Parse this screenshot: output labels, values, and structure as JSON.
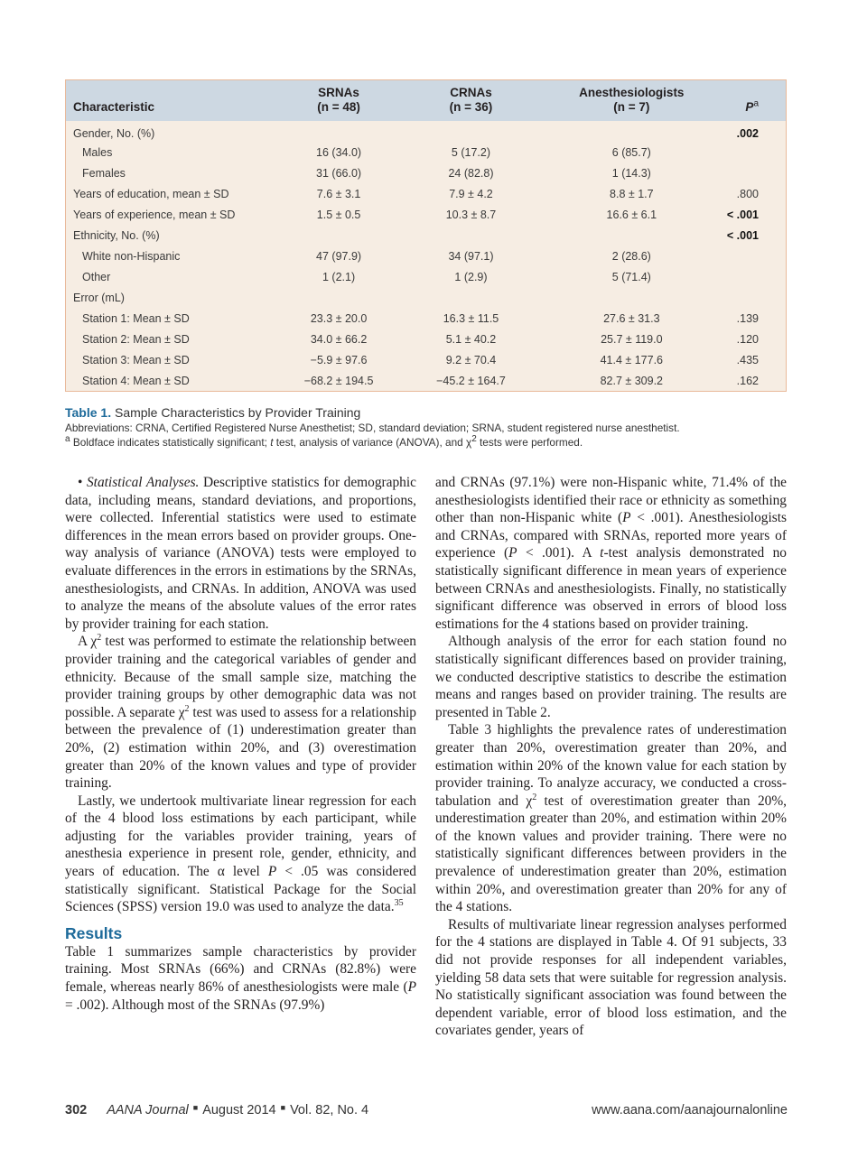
{
  "table": {
    "headers": [
      [
        "Characteristic",
        ""
      ],
      [
        "SRNAs",
        "(n = 48)"
      ],
      [
        "CRNAs",
        "(n = 36)"
      ],
      [
        "Anesthesiologists",
        "(n = 7)"
      ],
      [
        "P",
        "a"
      ]
    ],
    "rows": [
      {
        "label": "Gender, No. (%)",
        "indent": false,
        "values": [
          "",
          "",
          ""
        ],
        "p": ".002",
        "bold": true
      },
      {
        "label": "Males",
        "indent": true,
        "values": [
          "16 (34.0)",
          "5 (17.2)",
          "6 (85.7)"
        ],
        "p": "",
        "bold": false
      },
      {
        "label": "Females",
        "indent": true,
        "values": [
          "31 (66.0)",
          "24 (82.8)",
          "1 (14.3)"
        ],
        "p": "",
        "bold": false
      },
      {
        "label": "Years of education, mean ± SD",
        "indent": false,
        "values": [
          "7.6 ± 3.1",
          "7.9 ± 4.2",
          "8.8 ± 1.7"
        ],
        "p": ".800",
        "bold": false
      },
      {
        "label": "Years of experience, mean ± SD",
        "indent": false,
        "values": [
          "1.5 ± 0.5",
          "10.3 ± 8.7",
          "16.6 ± 6.1"
        ],
        "p": "< .001",
        "bold": true
      },
      {
        "label": "Ethnicity, No. (%)",
        "indent": false,
        "values": [
          "",
          "",
          ""
        ],
        "p": "< .001",
        "bold": true
      },
      {
        "label": "White non-Hispanic",
        "indent": true,
        "values": [
          "47 (97.9)",
          "34 (97.1)",
          "2 (28.6)"
        ],
        "p": "",
        "bold": false
      },
      {
        "label": "Other",
        "indent": true,
        "values": [
          "1 (2.1)",
          "1 (2.9)",
          "5 (71.4)"
        ],
        "p": "",
        "bold": false
      },
      {
        "label": "Error (mL)",
        "indent": false,
        "values": [
          "",
          "",
          ""
        ],
        "p": "",
        "bold": false
      },
      {
        "label": "Station 1: Mean ± SD",
        "indent": true,
        "values": [
          "23.3 ± 20.0",
          "16.3 ± 11.5",
          "27.6 ± 31.3"
        ],
        "p": ".139",
        "bold": false
      },
      {
        "label": "Station 2: Mean ± SD",
        "indent": true,
        "values": [
          "34.0 ± 66.2",
          "5.1 ± 40.2",
          "25.7 ± 119.0"
        ],
        "p": ".120",
        "bold": false
      },
      {
        "label": "Station 3: Mean ± SD",
        "indent": true,
        "values": [
          "−5.9 ± 97.6",
          "9.2 ± 70.4",
          "41.4 ± 177.6"
        ],
        "p": ".435",
        "bold": false
      },
      {
        "label": "Station 4: Mean ± SD",
        "indent": true,
        "values": [
          "−68.2 ± 194.5",
          "−45.2 ± 164.7",
          "82.7 ± 309.2"
        ],
        "p": ".162",
        "bold": false
      }
    ],
    "caption_label": "Table 1.",
    "caption_title": "Sample Characteristics by Provider Training",
    "abbreviations": "Abbreviations: CRNA, Certified Registered Nurse Anesthetist; SD, standard deviation; SRNA, student registered nurse anesthetist.",
    "footnote": [
      [
        "a",
        "sup"
      ],
      [
        " Boldface indicates statistically significant; ",
        ""
      ],
      [
        "t",
        "i"
      ],
      [
        " test, analysis of variance (ANOVA), and χ",
        ""
      ],
      [
        "2",
        "sup"
      ],
      [
        " tests were performed.",
        ""
      ]
    ]
  },
  "left_column": [
    {
      "type": "p",
      "segments": [
        [
          "• ",
          ""
        ],
        [
          "Statistical Analyses.",
          "i"
        ],
        [
          " Descriptive statistics for demographic data, including means, standard deviations, and proportions, were collected. Inferential statistics were used to estimate differences in the mean errors based on provider groups. One-way analysis of variance (ANOVA) tests were employed to evaluate differences in the errors in estimations by the SRNAs, anesthesiologists, and CRNAs. In addition, ANOVA was used to analyze the means of the absolute values of the error rates by provider training for each station.",
          ""
        ]
      ]
    },
    {
      "type": "p",
      "segments": [
        [
          "A χ",
          ""
        ],
        [
          "2",
          "sup"
        ],
        [
          " test was performed to estimate the relationship between provider training and the categorical variables of gender and ethnicity. Because of the small sample size, matching the provider training groups by other demographic data was not possible. A separate χ",
          ""
        ],
        [
          "2",
          "sup"
        ],
        [
          " test was used to assess for a relationship between the prevalence of (1) underestimation greater than 20%, (2) estimation within 20%, and (3) overestimation greater than 20% of the known values and type of provider training.",
          ""
        ]
      ]
    },
    {
      "type": "p",
      "segments": [
        [
          "Lastly, we undertook multivariate linear regression for each of the 4 blood loss estimations by each participant, while adjusting for the variables provider training, years of anesthesia experience in present role, gender, ethnicity, and years of education. The α level ",
          ""
        ],
        [
          "P",
          "i"
        ],
        [
          " < .05 was considered statistically significant. Statistical Package for the Social Sciences (SPSS) version 19.0 was used to analyze the data.",
          ""
        ],
        [
          "35",
          "sup"
        ]
      ]
    },
    {
      "type": "h2",
      "segments": [
        [
          "Results",
          ""
        ]
      ]
    },
    {
      "type": "p0",
      "segments": [
        [
          "Table 1 summarizes sample characteristics by provider training. Most SRNAs (66%) and CRNAs (82.8%) were female, whereas nearly 86% of anesthesiologists were male (",
          ""
        ],
        [
          "P",
          "i"
        ],
        [
          " = .002). Although most of the SRNAs (97.9%)",
          ""
        ]
      ]
    }
  ],
  "right_column": [
    {
      "type": "p0",
      "segments": [
        [
          "and CRNAs (97.1%) were non-Hispanic white, 71.4% of the anesthesiologists identified their race or ethnicity as something other than non-Hispanic white (",
          ""
        ],
        [
          "P",
          "i"
        ],
        [
          " < .001). Anesthesiologists and CRNAs, compared with SRNAs, reported more years of experience (",
          ""
        ],
        [
          "P",
          "i"
        ],
        [
          " < .001). A ",
          ""
        ],
        [
          "t",
          "i"
        ],
        [
          "-test analysis demonstrated no statistically significant difference in mean years of experience between CRNAs and anesthesiologists. Finally, no statistically significant difference was observed in errors of blood loss estimations for the 4 stations based on provider training.",
          ""
        ]
      ]
    },
    {
      "type": "p",
      "segments": [
        [
          "Although analysis of the error for each station found no statistically significant differences based on provider training, we conducted descriptive statistics to describe the estimation means and ranges based on provider training. The results are presented in Table 2.",
          ""
        ]
      ]
    },
    {
      "type": "p",
      "segments": [
        [
          "Table 3 highlights the prevalence rates of underestimation greater than 20%, overestimation greater than 20%, and estimation within 20% of the known value for each station by provider training. To analyze accuracy, we conducted a cross-tabulation and χ",
          ""
        ],
        [
          "2",
          "sup"
        ],
        [
          " test of overestimation greater than 20%, underestimation greater than 20%, and estimation within 20% of the known values and provider training. There were no statistically significant differences between providers in the prevalence of underestimation greater than 20%, estimation within 20%, and overestimation greater than 20% for any of the 4 stations.",
          ""
        ]
      ]
    },
    {
      "type": "p",
      "segments": [
        [
          "Results of multivariate linear regression analyses performed for the 4 stations are displayed in Table 4. Of 91 subjects, 33 did not provide responses for all independent variables, yielding 58 data sets that were suitable for regression analysis. No statistically significant association was found between the dependent variable, error of blood loss estimation, and the covariates gender, years of",
          ""
        ]
      ]
    }
  ],
  "footer": {
    "page": "302",
    "journal": "AANA Journal",
    "separator": "■",
    "date": "August 2014",
    "volume": "Vol. 82, No. 4",
    "url": "www.aana.com/aanajournalonline"
  },
  "colors": {
    "accent": "#1d6a9a",
    "table_header_bg": "#cdd8e2",
    "table_body_bg": "#f6ede3",
    "table_border": "#e9b99a"
  }
}
